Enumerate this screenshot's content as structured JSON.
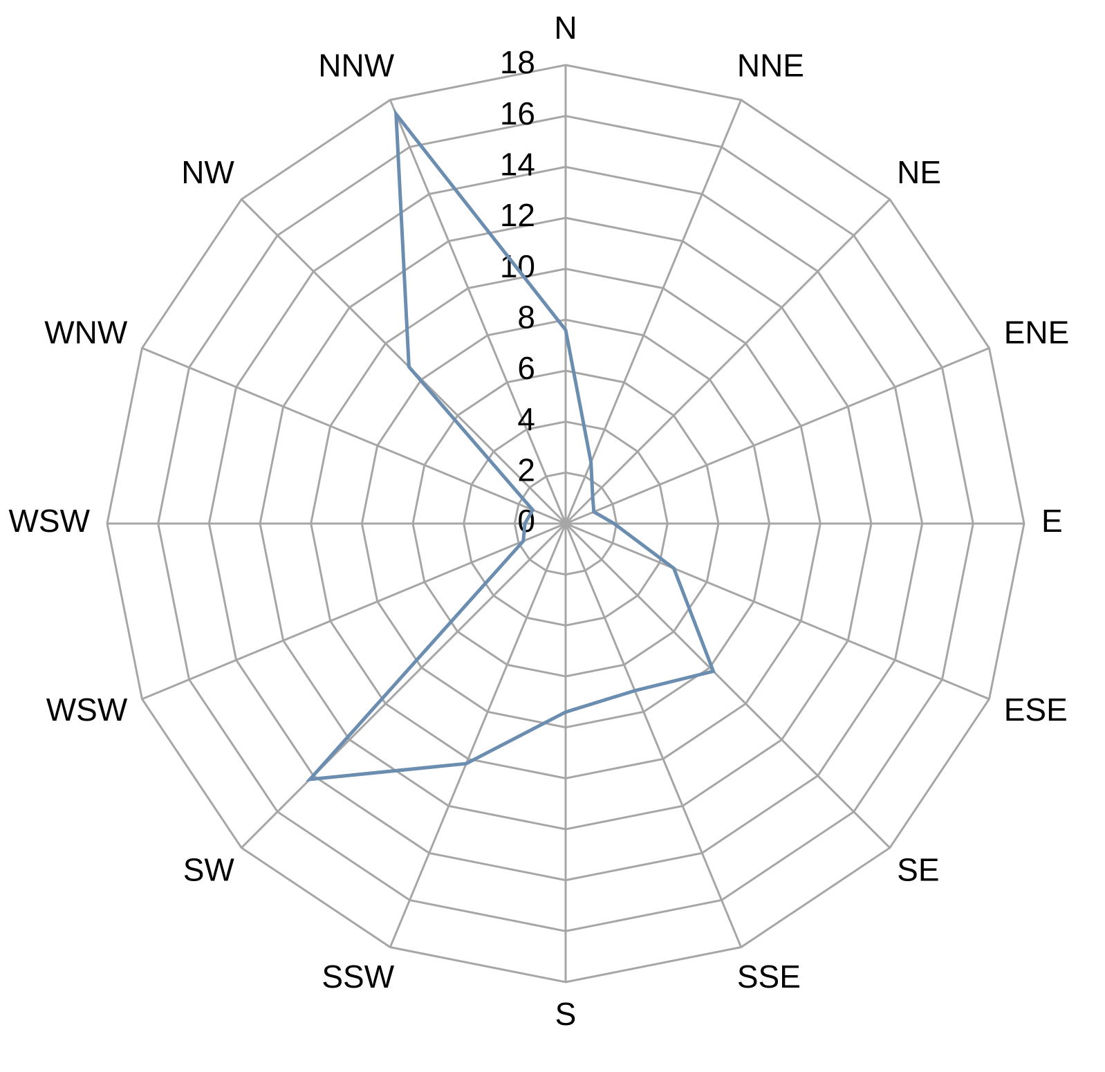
{
  "chart_data": {
    "type": "radar",
    "categories": [
      "N",
      "NNE",
      "NE",
      "ENE",
      "E",
      "ESE",
      "SE",
      "SSE",
      "S",
      "SSW",
      "SW",
      "WSW",
      "WSW",
      "WNW",
      "NW",
      "NNW"
    ],
    "series": [
      {
        "color": "#6b8db0",
        "values": [
          7.6,
          2.6,
          1.5,
          1.2,
          1.9,
          4.6,
          8.2,
          7.1,
          7.4,
          10.2,
          14.2,
          1.8,
          1.6,
          1.4,
          8.7,
          17.4
        ]
      }
    ],
    "ylim": [
      0,
      18
    ],
    "yticks": [
      0,
      2,
      4,
      6,
      8,
      10,
      12,
      14,
      16,
      18
    ],
    "grid": true
  }
}
